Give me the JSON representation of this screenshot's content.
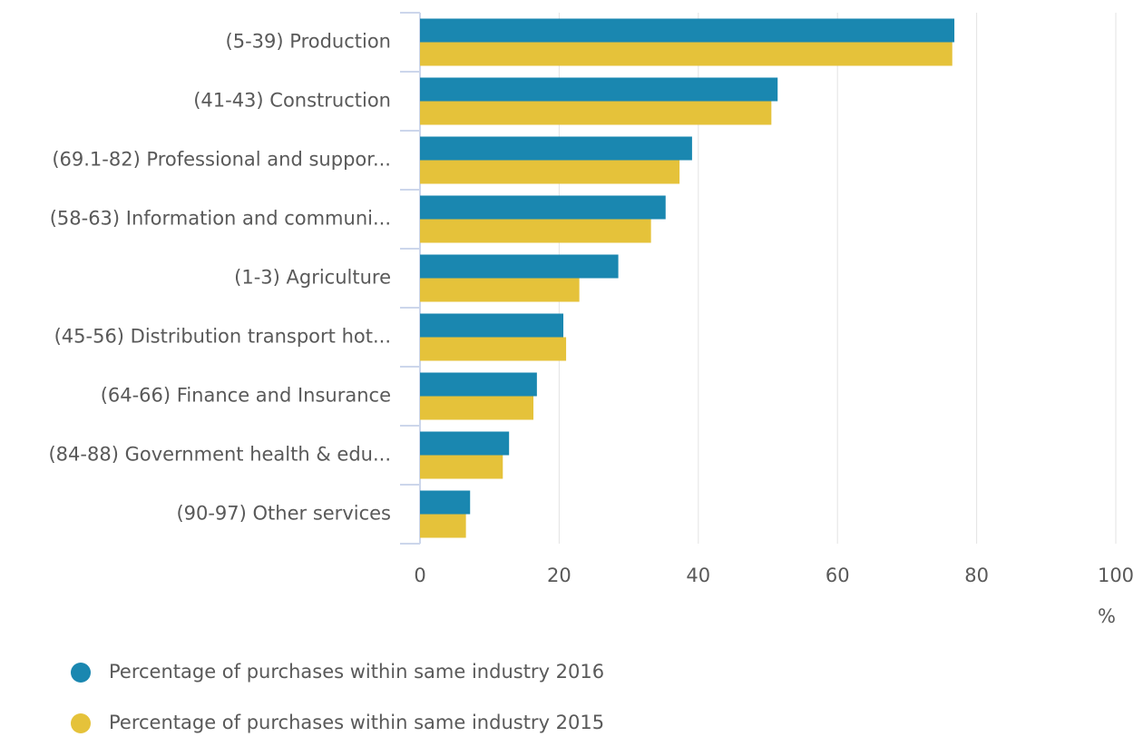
{
  "chart_data": {
    "type": "hbar",
    "categories": [
      "(5-39) Production",
      "(41-43) Construction",
      "(69.1-82) Professional and suppor...",
      "(58-63) Information and communi...",
      "(1-3) Agriculture",
      "(45-56) Distribution transport hot...",
      "(64-66) Finance and Insurance",
      "(84-88) Government health & edu...",
      "(90-97) Other services"
    ],
    "series": [
      {
        "name": "Percentage of purchases within same industry 2016",
        "color": "#1a87b0",
        "values": [
          76.8,
          51.4,
          39.1,
          35.3,
          28.5,
          20.6,
          16.8,
          12.8,
          7.2
        ]
      },
      {
        "name": "Percentage of purchases within same industry 2015",
        "color": "#e5c23a",
        "values": [
          76.5,
          50.5,
          37.3,
          33.2,
          22.9,
          21.0,
          16.3,
          11.9,
          6.6
        ]
      }
    ],
    "x_label": "%",
    "xlim": [
      0,
      100
    ],
    "xticks": [
      0,
      20,
      40,
      60,
      80,
      100
    ],
    "grid": true
  }
}
